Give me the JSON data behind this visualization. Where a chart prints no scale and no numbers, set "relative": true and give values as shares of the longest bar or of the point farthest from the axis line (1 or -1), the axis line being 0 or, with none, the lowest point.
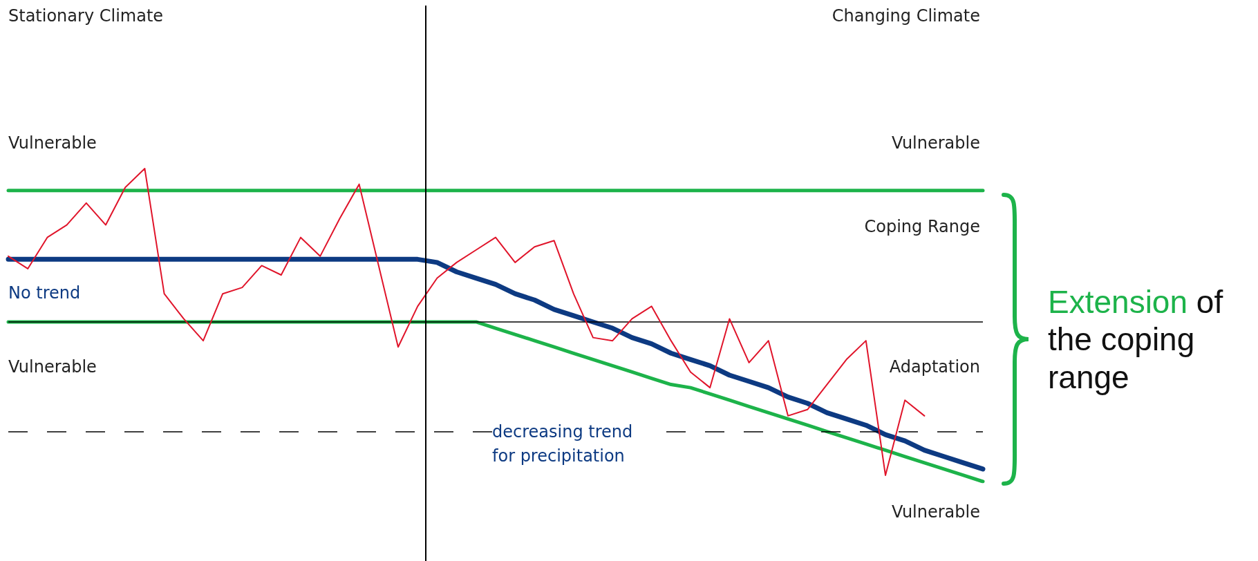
{
  "chart_data": {
    "type": "line",
    "relative": true,
    "grid": false,
    "marker": "none",
    "line_style": "solid",
    "categories": [
      null,
      null,
      null,
      null,
      null,
      null,
      null,
      null,
      null,
      null,
      null,
      null,
      null,
      null,
      null,
      null,
      null,
      null,
      null,
      null,
      null,
      null,
      null,
      null,
      null,
      null,
      null,
      null,
      null,
      null,
      null,
      null,
      null,
      null,
      null,
      null,
      null,
      null,
      null,
      null,
      null,
      null,
      null,
      null,
      null,
      null,
      null,
      null,
      null,
      null,
      null
    ],
    "series": [
      {
        "color": "#e0142a",
        "values": [
          0.72,
          0.68,
          0.78,
          0.82,
          0.89,
          0.82,
          0.94,
          1.0,
          0.6,
          0.52,
          0.45,
          0.6,
          0.62,
          0.69,
          0.66,
          0.78,
          0.72,
          0.84,
          0.95,
          0.69,
          0.43,
          0.56,
          0.65,
          0.7,
          0.74,
          0.78,
          0.7,
          0.75,
          0.77,
          0.6,
          0.46,
          0.45,
          0.52,
          0.56,
          0.45,
          0.35,
          0.3,
          0.52,
          0.38,
          0.45,
          0.21,
          0.23,
          0.31,
          0.39,
          0.45,
          0.02,
          0.26,
          0.21,
          null,
          null,
          null
        ]
      },
      {
        "color": "#0d3a82",
        "values": [
          0.71,
          0.71,
          0.71,
          0.71,
          0.71,
          0.71,
          0.71,
          0.71,
          0.71,
          0.71,
          0.71,
          0.71,
          0.71,
          0.71,
          0.71,
          0.71,
          0.71,
          0.71,
          0.71,
          0.71,
          0.71,
          0.71,
          0.7,
          0.67,
          0.65,
          0.63,
          0.6,
          0.58,
          0.55,
          0.53,
          0.51,
          0.49,
          0.46,
          0.44,
          0.41,
          0.39,
          0.37,
          0.34,
          0.32,
          0.3,
          0.27,
          0.25,
          0.22,
          0.2,
          0.18,
          0.15,
          0.13,
          0.1,
          0.08,
          0.06,
          0.04
        ]
      },
      {
        "color": "#1db34a",
        "values": [
          0.93,
          0.93,
          0.93,
          0.93,
          0.93,
          0.93,
          0.93,
          0.93,
          0.93,
          0.93,
          0.93,
          0.93,
          0.93,
          0.93,
          0.93,
          0.93,
          0.93,
          0.93,
          0.93,
          0.93,
          0.93,
          0.93,
          0.93,
          0.93,
          0.93,
          0.93,
          0.93,
          0.93,
          0.93,
          0.93,
          0.93,
          0.93,
          0.93,
          0.93,
          0.93,
          0.93,
          0.93,
          0.93,
          0.93,
          0.93,
          0.93,
          0.93,
          0.93,
          0.93,
          0.93,
          0.93,
          0.93,
          0.93,
          0.93,
          0.93,
          0.93
        ]
      },
      {
        "color": "#1db34a",
        "values": [
          0.51,
          0.51,
          0.51,
          0.51,
          0.51,
          0.51,
          0.51,
          0.51,
          0.51,
          0.51,
          0.51,
          0.51,
          0.51,
          0.51,
          0.51,
          0.51,
          0.51,
          0.51,
          0.51,
          0.51,
          0.51,
          0.51,
          0.51,
          0.51,
          0.51,
          0.49,
          0.47,
          0.45,
          0.43,
          0.41,
          0.39,
          0.37,
          0.35,
          0.33,
          0.31,
          0.3,
          0.28,
          0.26,
          0.24,
          0.22,
          0.2,
          0.18,
          0.16,
          0.14,
          0.12,
          0.1,
          0.08,
          0.06,
          0.04,
          0.02,
          0
        ]
      }
    ],
    "ref_lines": [
      {
        "axis": "y",
        "value": 0.51,
        "color": "#000000"
      },
      {
        "axis": "y",
        "value": 0.16,
        "color": "#000000",
        "line_style": "dashed"
      }
    ],
    "annotations": [
      "Stationary Climate",
      "Changing Climate",
      "Vulnerable",
      "Vulnerable",
      "Coping Range",
      "No trend",
      "Vulnerable",
      "Adaptation",
      "decreasing trend\nfor precipitation",
      "Vulnerable",
      "Extension of\nthe coping\nrange"
    ]
  }
}
